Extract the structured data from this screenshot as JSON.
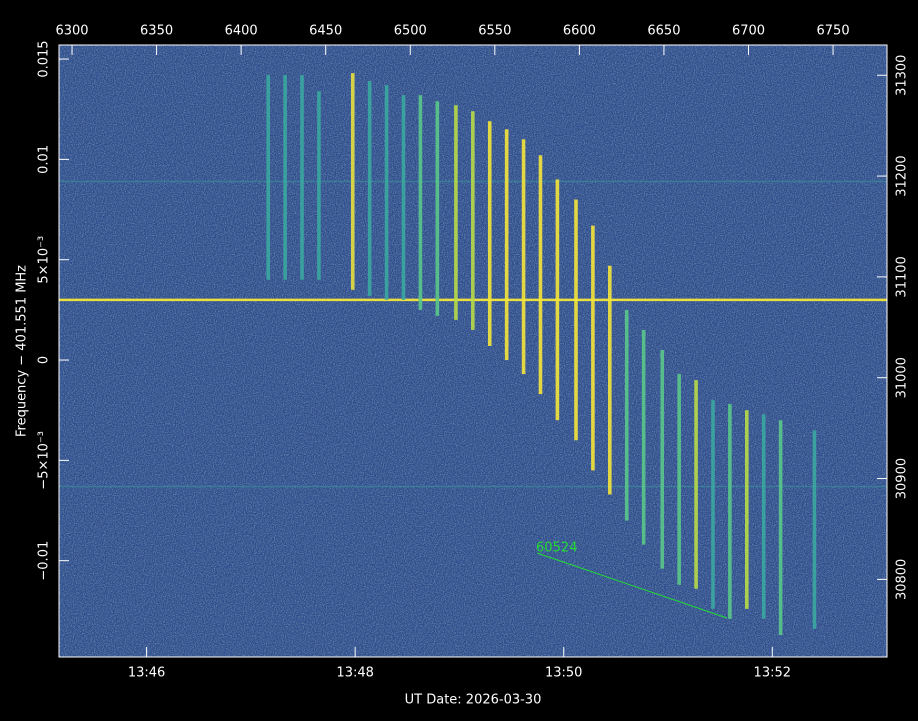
{
  "chart_data": {
    "type": "spectrogram",
    "xlabel": "UT Date: 2026-03-30",
    "ylabel": "Frequency − 401.551 MHz",
    "annotation": "60524",
    "xlim": [
      825.16,
      833.1
    ],
    "xticks": [
      {
        "value": 826,
        "label": "13:46"
      },
      {
        "value": 828,
        "label": "13:48"
      },
      {
        "value": 830,
        "label": "13:50"
      },
      {
        "value": 832,
        "label": "13:52"
      }
    ],
    "x2lim": [
      6292.3,
      6781.9
    ],
    "x2ticks": [
      6300,
      6350,
      6400,
      6450,
      6500,
      6550,
      6600,
      6650,
      6700,
      6750
    ],
    "ylim": [
      -0.0148,
      0.0157
    ],
    "yticks": [
      {
        "value": -0.01,
        "label": "−0.01"
      },
      {
        "value": -0.005,
        "label": "−5×10⁻³"
      },
      0,
      {
        "value": 0.005,
        "label": "5×10⁻³"
      },
      0.01,
      0.015
    ],
    "y2lim": [
      30723,
      31330
    ],
    "y2ticks": [
      30800,
      30900,
      31000,
      31100,
      31200,
      31300
    ],
    "bursts": {
      "x": [
        6416,
        6426,
        6436,
        6446,
        6466,
        6476,
        6486,
        6496,
        6506,
        6516,
        6527,
        6537,
        6547,
        6557,
        6567,
        6577,
        6587,
        6598,
        6608,
        6618,
        6628,
        6638,
        6649,
        6659,
        6669,
        6679,
        6689,
        6699,
        6709,
        6719,
        6739
      ],
      "high": [
        0.0142,
        0.0142,
        0.0142,
        0.0134,
        0.0143,
        0.0139,
        0.0137,
        0.0132,
        0.0132,
        0.0129,
        0.0127,
        0.0124,
        0.0119,
        0.0115,
        0.011,
        0.0102,
        0.009,
        0.008,
        0.0067,
        0.0047,
        0.0025,
        0.0015,
        0.0005,
        -0.0007,
        -0.001,
        -0.002,
        -0.0022,
        -0.0025,
        -0.0027,
        -0.003,
        -0.0035
      ],
      "low": [
        0.004,
        0.004,
        0.004,
        0.004,
        0.0035,
        0.0032,
        0.003,
        0.003,
        0.0025,
        0.0022,
        0.002,
        0.0015,
        0.0007,
        0,
        -0.0007,
        -0.0017,
        -0.003,
        -0.004,
        -0.0055,
        -0.0067,
        -0.008,
        -0.0092,
        -0.0104,
        -0.0112,
        -0.0114,
        -0.0124,
        -0.0129,
        -0.0124,
        -0.0129,
        -0.0137,
        -0.0134
      ],
      "colors": [
        "#3aa8a0",
        "#3aa8a0",
        "#3aa8a0",
        "#3aa8a0",
        "#e8e040",
        "#3aa8a0",
        "#3aa8a0",
        "#3aa8a0",
        "#5ac88a",
        "#5ac88a",
        "#b8dc48",
        "#b8dc48",
        "#f5e63a",
        "#f5e63a",
        "#f5e63a",
        "#f5e63a",
        "#f5e63a",
        "#f5e63a",
        "#f5e63a",
        "#f5e63a",
        "#5ac88a",
        "#5ac88a",
        "#5ac88a",
        "#5ac88a",
        "#b8dc48",
        "#3aa8a0",
        "#5ac88a",
        "#b8dc48",
        "#3aa8a0",
        "#5ac88a",
        "#3aa8a0"
      ]
    },
    "lines": {
      "values": [
        0.003,
        0.0089,
        -0.0063
      ],
      "colors": [
        "#f5e63a",
        "#3a8a9a",
        "#3a8a9a"
      ]
    }
  }
}
